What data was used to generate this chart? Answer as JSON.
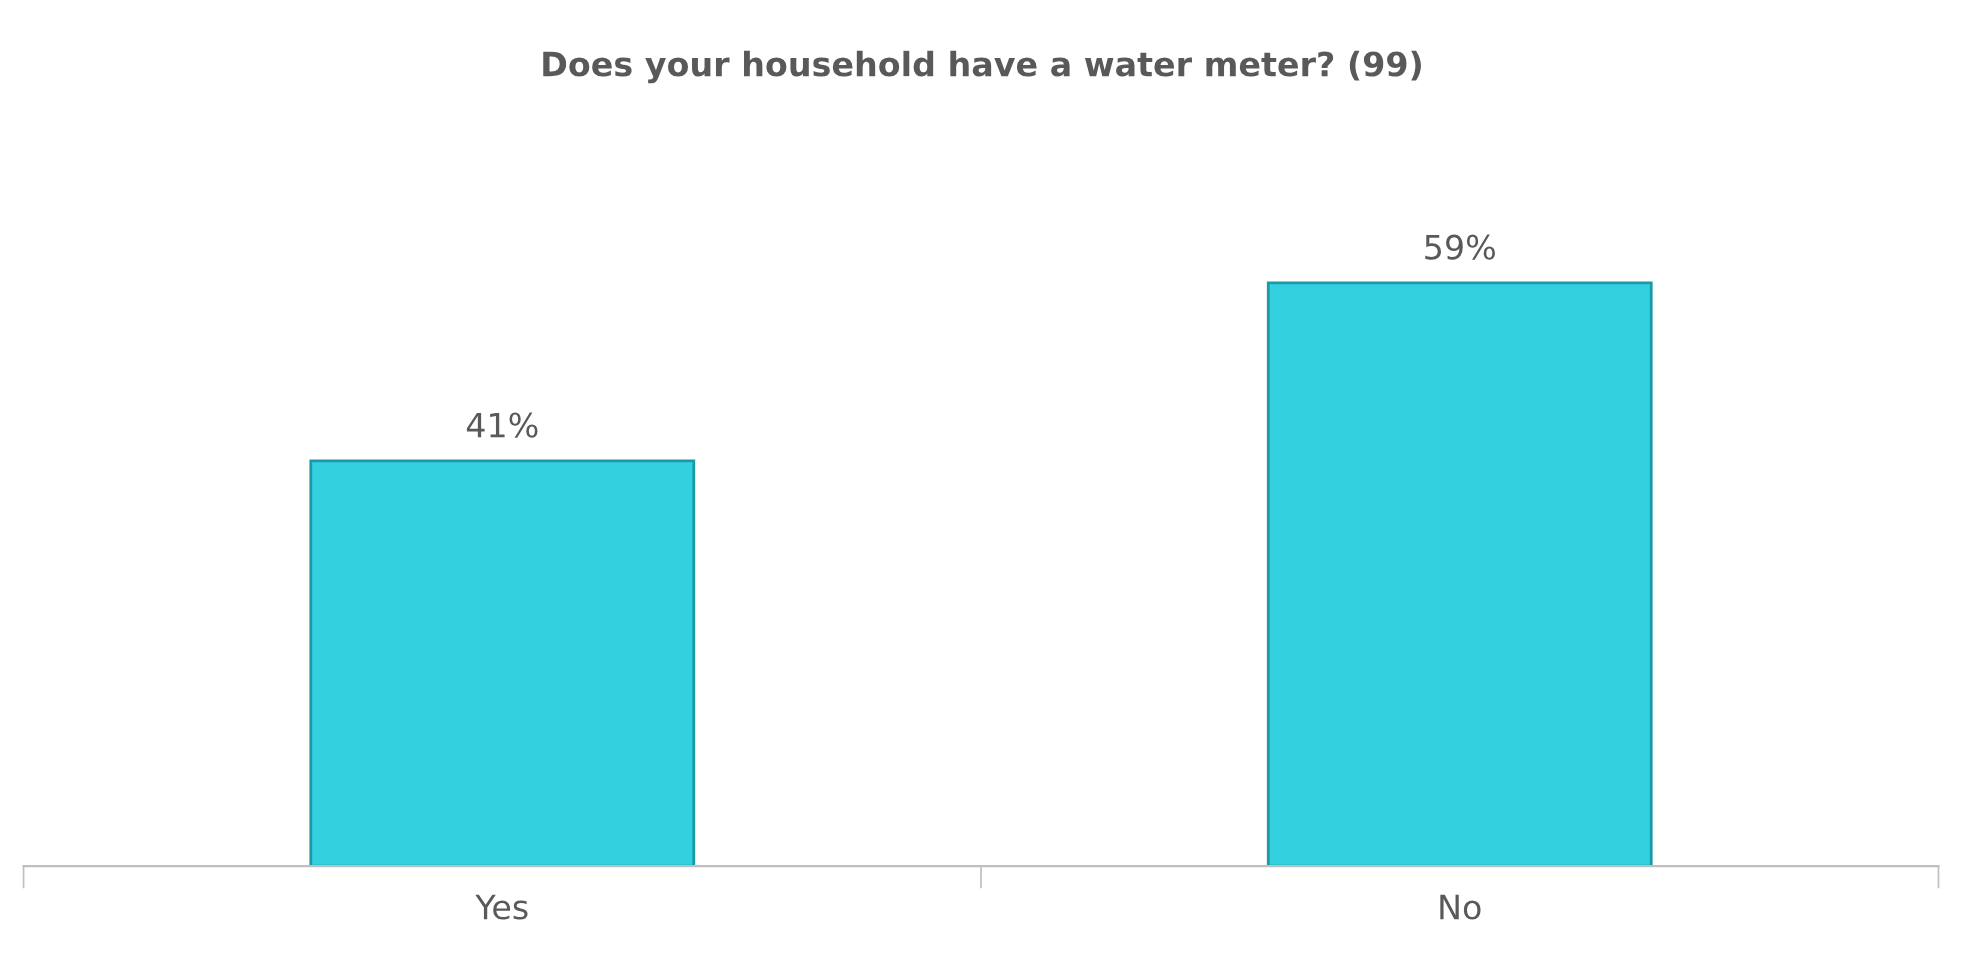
{
  "chart_data": {
    "type": "bar",
    "title": "Does your household have a water meter? (99)",
    "categories": [
      "Yes",
      "No"
    ],
    "series": [
      {
        "color": "#33d1e0",
        "values": [
          41,
          59
        ],
        "value_labels": [
          "41%",
          "59%"
        ]
      }
    ],
    "grid": false,
    "legend": false,
    "tick_labels": "x"
  }
}
